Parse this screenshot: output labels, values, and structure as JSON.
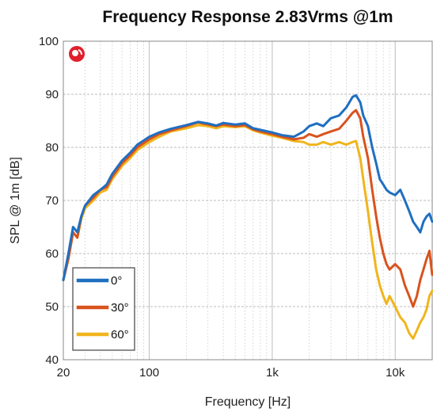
{
  "chart_data": {
    "type": "line",
    "title": "Frequency Response 2.83Vrms @1m",
    "xlabel": "Frequency [Hz]",
    "ylabel": "SPL @ 1m [dB]",
    "xscale": "log",
    "xlim": [
      20,
      20000
    ],
    "ylim": [
      40,
      100
    ],
    "x_ticks": [
      {
        "value": 20,
        "label": "20"
      },
      {
        "value": 100,
        "label": "100"
      },
      {
        "value": 1000,
        "label": "1k"
      },
      {
        "value": 10000,
        "label": "10k"
      }
    ],
    "y_ticks": [
      40,
      50,
      60,
      70,
      80,
      90,
      100
    ],
    "grid": true,
    "legend_position": "bottom-left",
    "logo_icon": "brand-logo-icon",
    "series": [
      {
        "name": "0°",
        "color": "#1f6fc0",
        "points": [
          [
            20,
            55
          ],
          [
            22,
            60
          ],
          [
            24,
            65
          ],
          [
            26,
            64
          ],
          [
            28,
            67
          ],
          [
            30,
            69
          ],
          [
            35,
            71
          ],
          [
            40,
            72
          ],
          [
            45,
            73
          ],
          [
            50,
            75
          ],
          [
            60,
            77.5
          ],
          [
            70,
            79
          ],
          [
            80,
            80.5
          ],
          [
            100,
            82
          ],
          [
            120,
            82.8
          ],
          [
            150,
            83.5
          ],
          [
            200,
            84.2
          ],
          [
            250,
            84.8
          ],
          [
            300,
            84.5
          ],
          [
            350,
            84.1
          ],
          [
            400,
            84.6
          ],
          [
            500,
            84.3
          ],
          [
            600,
            84.5
          ],
          [
            700,
            83.6
          ],
          [
            800,
            83.3
          ],
          [
            1000,
            82.8
          ],
          [
            1200,
            82.3
          ],
          [
            1500,
            82
          ],
          [
            1800,
            83
          ],
          [
            2000,
            84
          ],
          [
            2300,
            84.5
          ],
          [
            2600,
            84
          ],
          [
            3000,
            85.5
          ],
          [
            3500,
            86
          ],
          [
            4000,
            87.5
          ],
          [
            4500,
            89.5
          ],
          [
            4800,
            89.8
          ],
          [
            5200,
            88.5
          ],
          [
            5500,
            86
          ],
          [
            6000,
            84
          ],
          [
            6500,
            80
          ],
          [
            7000,
            77
          ],
          [
            7500,
            74
          ],
          [
            8000,
            73
          ],
          [
            8500,
            72
          ],
          [
            9000,
            71.5
          ],
          [
            10000,
            71
          ],
          [
            11000,
            72
          ],
          [
            12000,
            70
          ],
          [
            13000,
            68
          ],
          [
            14000,
            66
          ],
          [
            15000,
            65
          ],
          [
            16000,
            64
          ],
          [
            17000,
            66
          ],
          [
            18000,
            67
          ],
          [
            19000,
            67.5
          ],
          [
            20000,
            66
          ]
        ]
      },
      {
        "name": "30°",
        "color": "#d9531e",
        "points": [
          [
            20,
            55
          ],
          [
            22,
            59
          ],
          [
            24,
            64
          ],
          [
            26,
            63
          ],
          [
            28,
            67
          ],
          [
            30,
            69
          ],
          [
            35,
            70.5
          ],
          [
            40,
            72
          ],
          [
            45,
            72.5
          ],
          [
            50,
            74.5
          ],
          [
            60,
            77
          ],
          [
            70,
            78.5
          ],
          [
            80,
            80
          ],
          [
            100,
            81.5
          ],
          [
            120,
            82.5
          ],
          [
            150,
            83.2
          ],
          [
            200,
            84
          ],
          [
            250,
            84.7
          ],
          [
            300,
            84.3
          ],
          [
            350,
            84
          ],
          [
            400,
            84.3
          ],
          [
            500,
            84
          ],
          [
            600,
            84.2
          ],
          [
            700,
            83.4
          ],
          [
            800,
            83
          ],
          [
            1000,
            82.5
          ],
          [
            1200,
            82
          ],
          [
            1500,
            81.5
          ],
          [
            1800,
            81.8
          ],
          [
            2000,
            82.5
          ],
          [
            2300,
            82
          ],
          [
            2600,
            82.5
          ],
          [
            3000,
            83
          ],
          [
            3500,
            83.5
          ],
          [
            4000,
            85
          ],
          [
            4500,
            86.5
          ],
          [
            4800,
            87
          ],
          [
            5200,
            85.5
          ],
          [
            5500,
            82
          ],
          [
            6000,
            78
          ],
          [
            6500,
            72
          ],
          [
            7000,
            67
          ],
          [
            7500,
            63
          ],
          [
            8000,
            60
          ],
          [
            8500,
            58
          ],
          [
            9000,
            57
          ],
          [
            10000,
            58
          ],
          [
            11000,
            57
          ],
          [
            12000,
            54
          ],
          [
            13000,
            52
          ],
          [
            14000,
            50
          ],
          [
            15000,
            52
          ],
          [
            16000,
            55
          ],
          [
            17000,
            57
          ],
          [
            18000,
            59
          ],
          [
            19000,
            60.5
          ],
          [
            20000,
            56
          ]
        ]
      },
      {
        "name": "60°",
        "color": "#f0b51c",
        "points": [
          [
            20,
            55
          ],
          [
            22,
            59
          ],
          [
            24,
            64
          ],
          [
            26,
            63
          ],
          [
            28,
            66.5
          ],
          [
            30,
            68.5
          ],
          [
            35,
            70
          ],
          [
            40,
            71.5
          ],
          [
            45,
            72
          ],
          [
            50,
            74
          ],
          [
            60,
            76.5
          ],
          [
            70,
            78
          ],
          [
            80,
            79.5
          ],
          [
            100,
            81
          ],
          [
            120,
            82
          ],
          [
            150,
            83
          ],
          [
            200,
            83.6
          ],
          [
            250,
            84.2
          ],
          [
            300,
            84
          ],
          [
            350,
            83.6
          ],
          [
            400,
            84
          ],
          [
            500,
            83.8
          ],
          [
            600,
            84
          ],
          [
            700,
            83.2
          ],
          [
            800,
            82.8
          ],
          [
            1000,
            82.2
          ],
          [
            1200,
            81.8
          ],
          [
            1500,
            81.2
          ],
          [
            1800,
            81
          ],
          [
            2000,
            80.5
          ],
          [
            2300,
            80.5
          ],
          [
            2600,
            81
          ],
          [
            3000,
            80.5
          ],
          [
            3500,
            81
          ],
          [
            4000,
            80.5
          ],
          [
            4500,
            81
          ],
          [
            4800,
            81.2
          ],
          [
            5200,
            78
          ],
          [
            5500,
            74
          ],
          [
            6000,
            68
          ],
          [
            6500,
            62
          ],
          [
            7000,
            57
          ],
          [
            7500,
            54
          ],
          [
            8000,
            52
          ],
          [
            8500,
            50.5
          ],
          [
            9000,
            52
          ],
          [
            10000,
            50
          ],
          [
            11000,
            48
          ],
          [
            12000,
            47
          ],
          [
            13000,
            45
          ],
          [
            14000,
            44
          ],
          [
            15000,
            45.5
          ],
          [
            16000,
            47
          ],
          [
            17000,
            48
          ],
          [
            18000,
            49.5
          ],
          [
            19000,
            52
          ],
          [
            20000,
            53
          ]
        ]
      }
    ]
  }
}
